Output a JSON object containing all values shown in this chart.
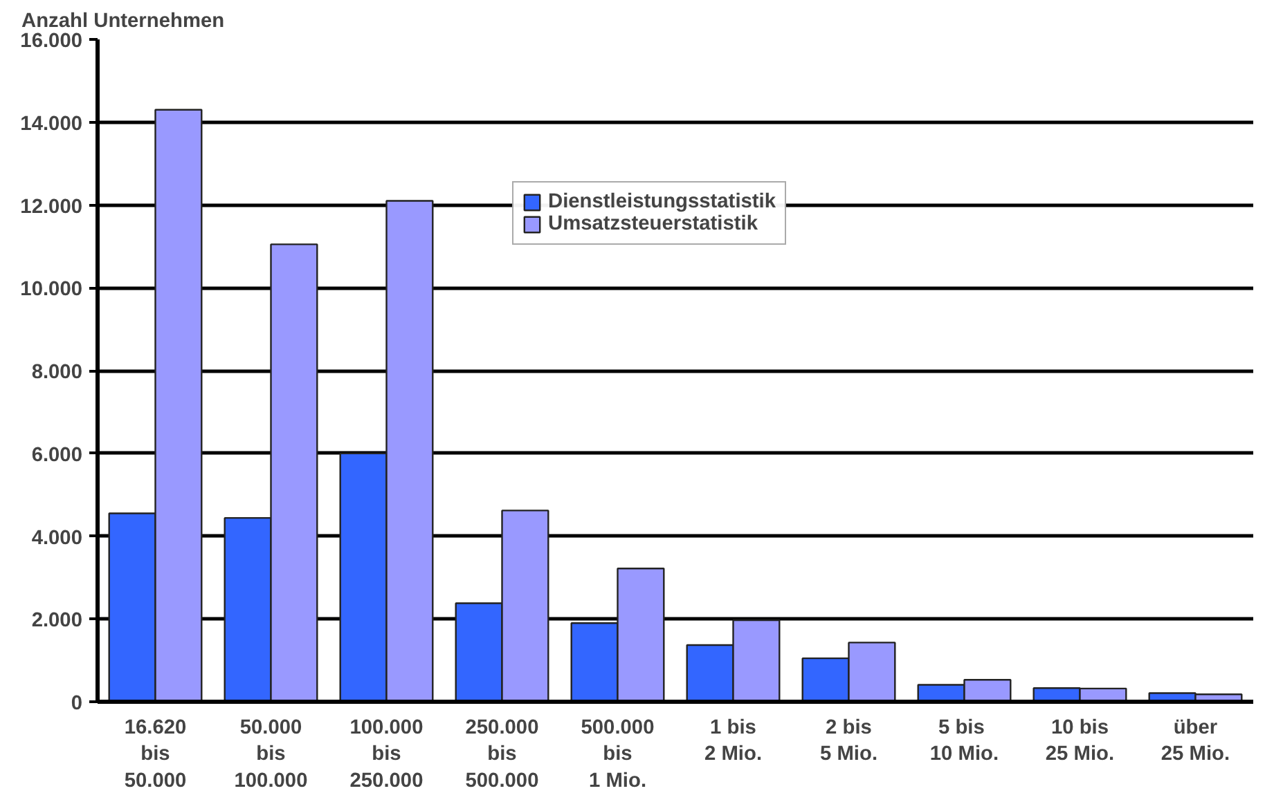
{
  "chart_data": {
    "type": "bar",
    "ylabel": "Anzahl Unternehmen",
    "categories": [
      "16.620\nbis\n50.000",
      "50.000\nbis\n100.000",
      "100.000\nbis\n250.000",
      "250.000\nbis\n500.000",
      "500.000\nbis\n1 Mio.",
      "1 bis\n2 Mio.",
      "2 bis\n5 Mio.",
      "5  bis\n10 Mio.",
      "10 bis\n25 Mio.",
      "über\n25 Mio."
    ],
    "series": [
      {
        "name": "Dienstleistungsstatistik",
        "color": "#3366ff",
        "values": [
          4550,
          4440,
          6000,
          2380,
          1900,
          1370,
          1050,
          410,
          330,
          210
        ]
      },
      {
        "name": "Umsatzsteuerstatistik",
        "color": "#9999ff",
        "values": [
          14300,
          11050,
          12100,
          4620,
          3220,
          1970,
          1430,
          530,
          320,
          180
        ]
      }
    ],
    "ylim": [
      0,
      16000
    ],
    "yticks": [
      {
        "value": 0,
        "label": "0"
      },
      {
        "value": 2000,
        "label": "2.000"
      },
      {
        "value": 4000,
        "label": "4.000"
      },
      {
        "value": 6000,
        "label": "6.000"
      },
      {
        "value": 8000,
        "label": "8.000"
      },
      {
        "value": 10000,
        "label": "10.000"
      },
      {
        "value": 12000,
        "label": "12.000"
      },
      {
        "value": 14000,
        "label": "14.000"
      },
      {
        "value": 16000,
        "label": "16.000"
      }
    ],
    "grid": "y",
    "legend": "top"
  }
}
